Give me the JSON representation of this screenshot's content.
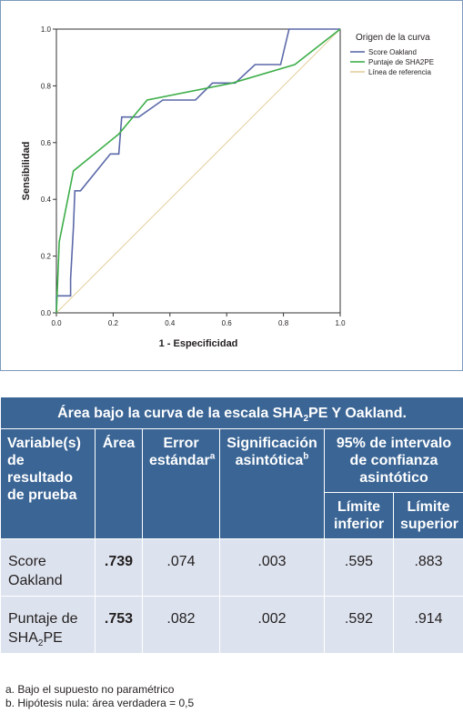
{
  "chart_data": {
    "type": "line",
    "xlabel": "1 - Especificidad",
    "ylabel": "Sensibilidad",
    "xlim": [
      0,
      1
    ],
    "ylim": [
      0,
      1
    ],
    "x_ticks": [
      "0.0",
      "0.2",
      "0.4",
      "0.6",
      "0.8",
      "1.0"
    ],
    "y_ticks": [
      "0.0",
      "0.2",
      "0.4",
      "0.6",
      "0.8",
      "1.0"
    ],
    "grid": false,
    "legend_title": "Origen de la curva",
    "legend_position": "top-right",
    "series": [
      {
        "name": "Score Oakland",
        "color": "#5b69a8",
        "points": [
          [
            0,
            0
          ],
          [
            0,
            0.06
          ],
          [
            0.03,
            0.06
          ],
          [
            0.05,
            0.06
          ],
          [
            0.05,
            0.12
          ],
          [
            0.06,
            0.3
          ],
          [
            0.065,
            0.43
          ],
          [
            0.085,
            0.43
          ],
          [
            0.19,
            0.56
          ],
          [
            0.22,
            0.56
          ],
          [
            0.23,
            0.69
          ],
          [
            0.27,
            0.69
          ],
          [
            0.29,
            0.69
          ],
          [
            0.375,
            0.75
          ],
          [
            0.49,
            0.75
          ],
          [
            0.55,
            0.81
          ],
          [
            0.63,
            0.81
          ],
          [
            0.7,
            0.875
          ],
          [
            0.79,
            0.875
          ],
          [
            0.82,
            1.0
          ],
          [
            1.0,
            1.0
          ]
        ]
      },
      {
        "name": "Puntaje de SHA2PE",
        "color": "#3dae49",
        "points": [
          [
            0,
            0
          ],
          [
            0.01,
            0.25
          ],
          [
            0.06,
            0.5
          ],
          [
            0.22,
            0.63
          ],
          [
            0.32,
            0.75
          ],
          [
            0.62,
            0.81
          ],
          [
            0.84,
            0.875
          ],
          [
            1.0,
            1.0
          ]
        ]
      },
      {
        "name": "Línea de referencia",
        "color": "#e4cf9e",
        "points": [
          [
            0,
            0
          ],
          [
            1,
            1
          ]
        ]
      }
    ]
  },
  "table": {
    "caption_pre": "Área bajo la curva de la escala SHA",
    "caption_sub": "2",
    "caption_post": "PE Y Oakland.",
    "headers": {
      "variable": "Variable(s) de resultado de prueba",
      "area": "Área",
      "error": "Error estándar",
      "error_sup": "a",
      "signif": "Significación asintótica",
      "signif_sup": "b",
      "interval": "95% de intervalo de confianza asintótico",
      "lower": "Límite inferior",
      "upper": "Límite superior"
    },
    "rows": [
      {
        "name_pre": "Score Oakland",
        "name_sub": "",
        "name_post": "",
        "area": ".739",
        "error": ".074",
        "signif": ".003",
        "lower": ".595",
        "upper": ".883"
      },
      {
        "name_pre": "Puntaje de SHA",
        "name_sub": "2",
        "name_post": "PE",
        "area": ".753",
        "error": ".082",
        "signif": ".002",
        "lower": ".592",
        "upper": ".914"
      }
    ]
  },
  "footnotes": {
    "a": "a. Bajo el supuesto no paramétrico",
    "b": "b. Hipótesis nula: área verdadera = 0,5"
  }
}
